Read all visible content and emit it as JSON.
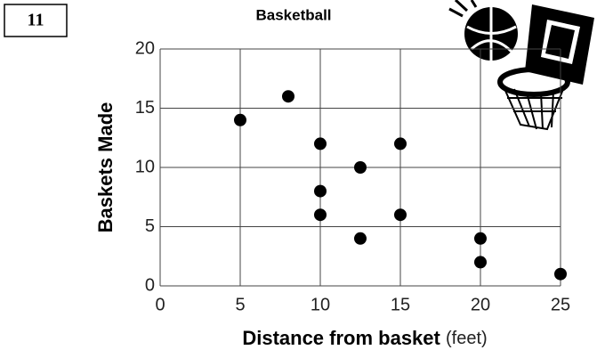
{
  "problem_number": "11",
  "chart_data": {
    "type": "scatter",
    "title": "Basketball",
    "x_label": "Distance from basket",
    "x_unit": "(feet)",
    "y_label": "Baskets Made",
    "x": [
      5,
      8,
      10,
      10,
      10,
      12.5,
      12.5,
      15,
      15,
      20,
      20,
      25
    ],
    "values": [
      14,
      16,
      12,
      8,
      6,
      10,
      4,
      12,
      6,
      4,
      2,
      1
    ],
    "color": "#000000",
    "xlim": [
      0,
      25
    ],
    "ylim": [
      0,
      20
    ],
    "xticks": [
      0,
      5,
      10,
      15,
      20,
      25
    ],
    "yticks": [
      0,
      5,
      10,
      15,
      20
    ],
    "grid": true
  }
}
